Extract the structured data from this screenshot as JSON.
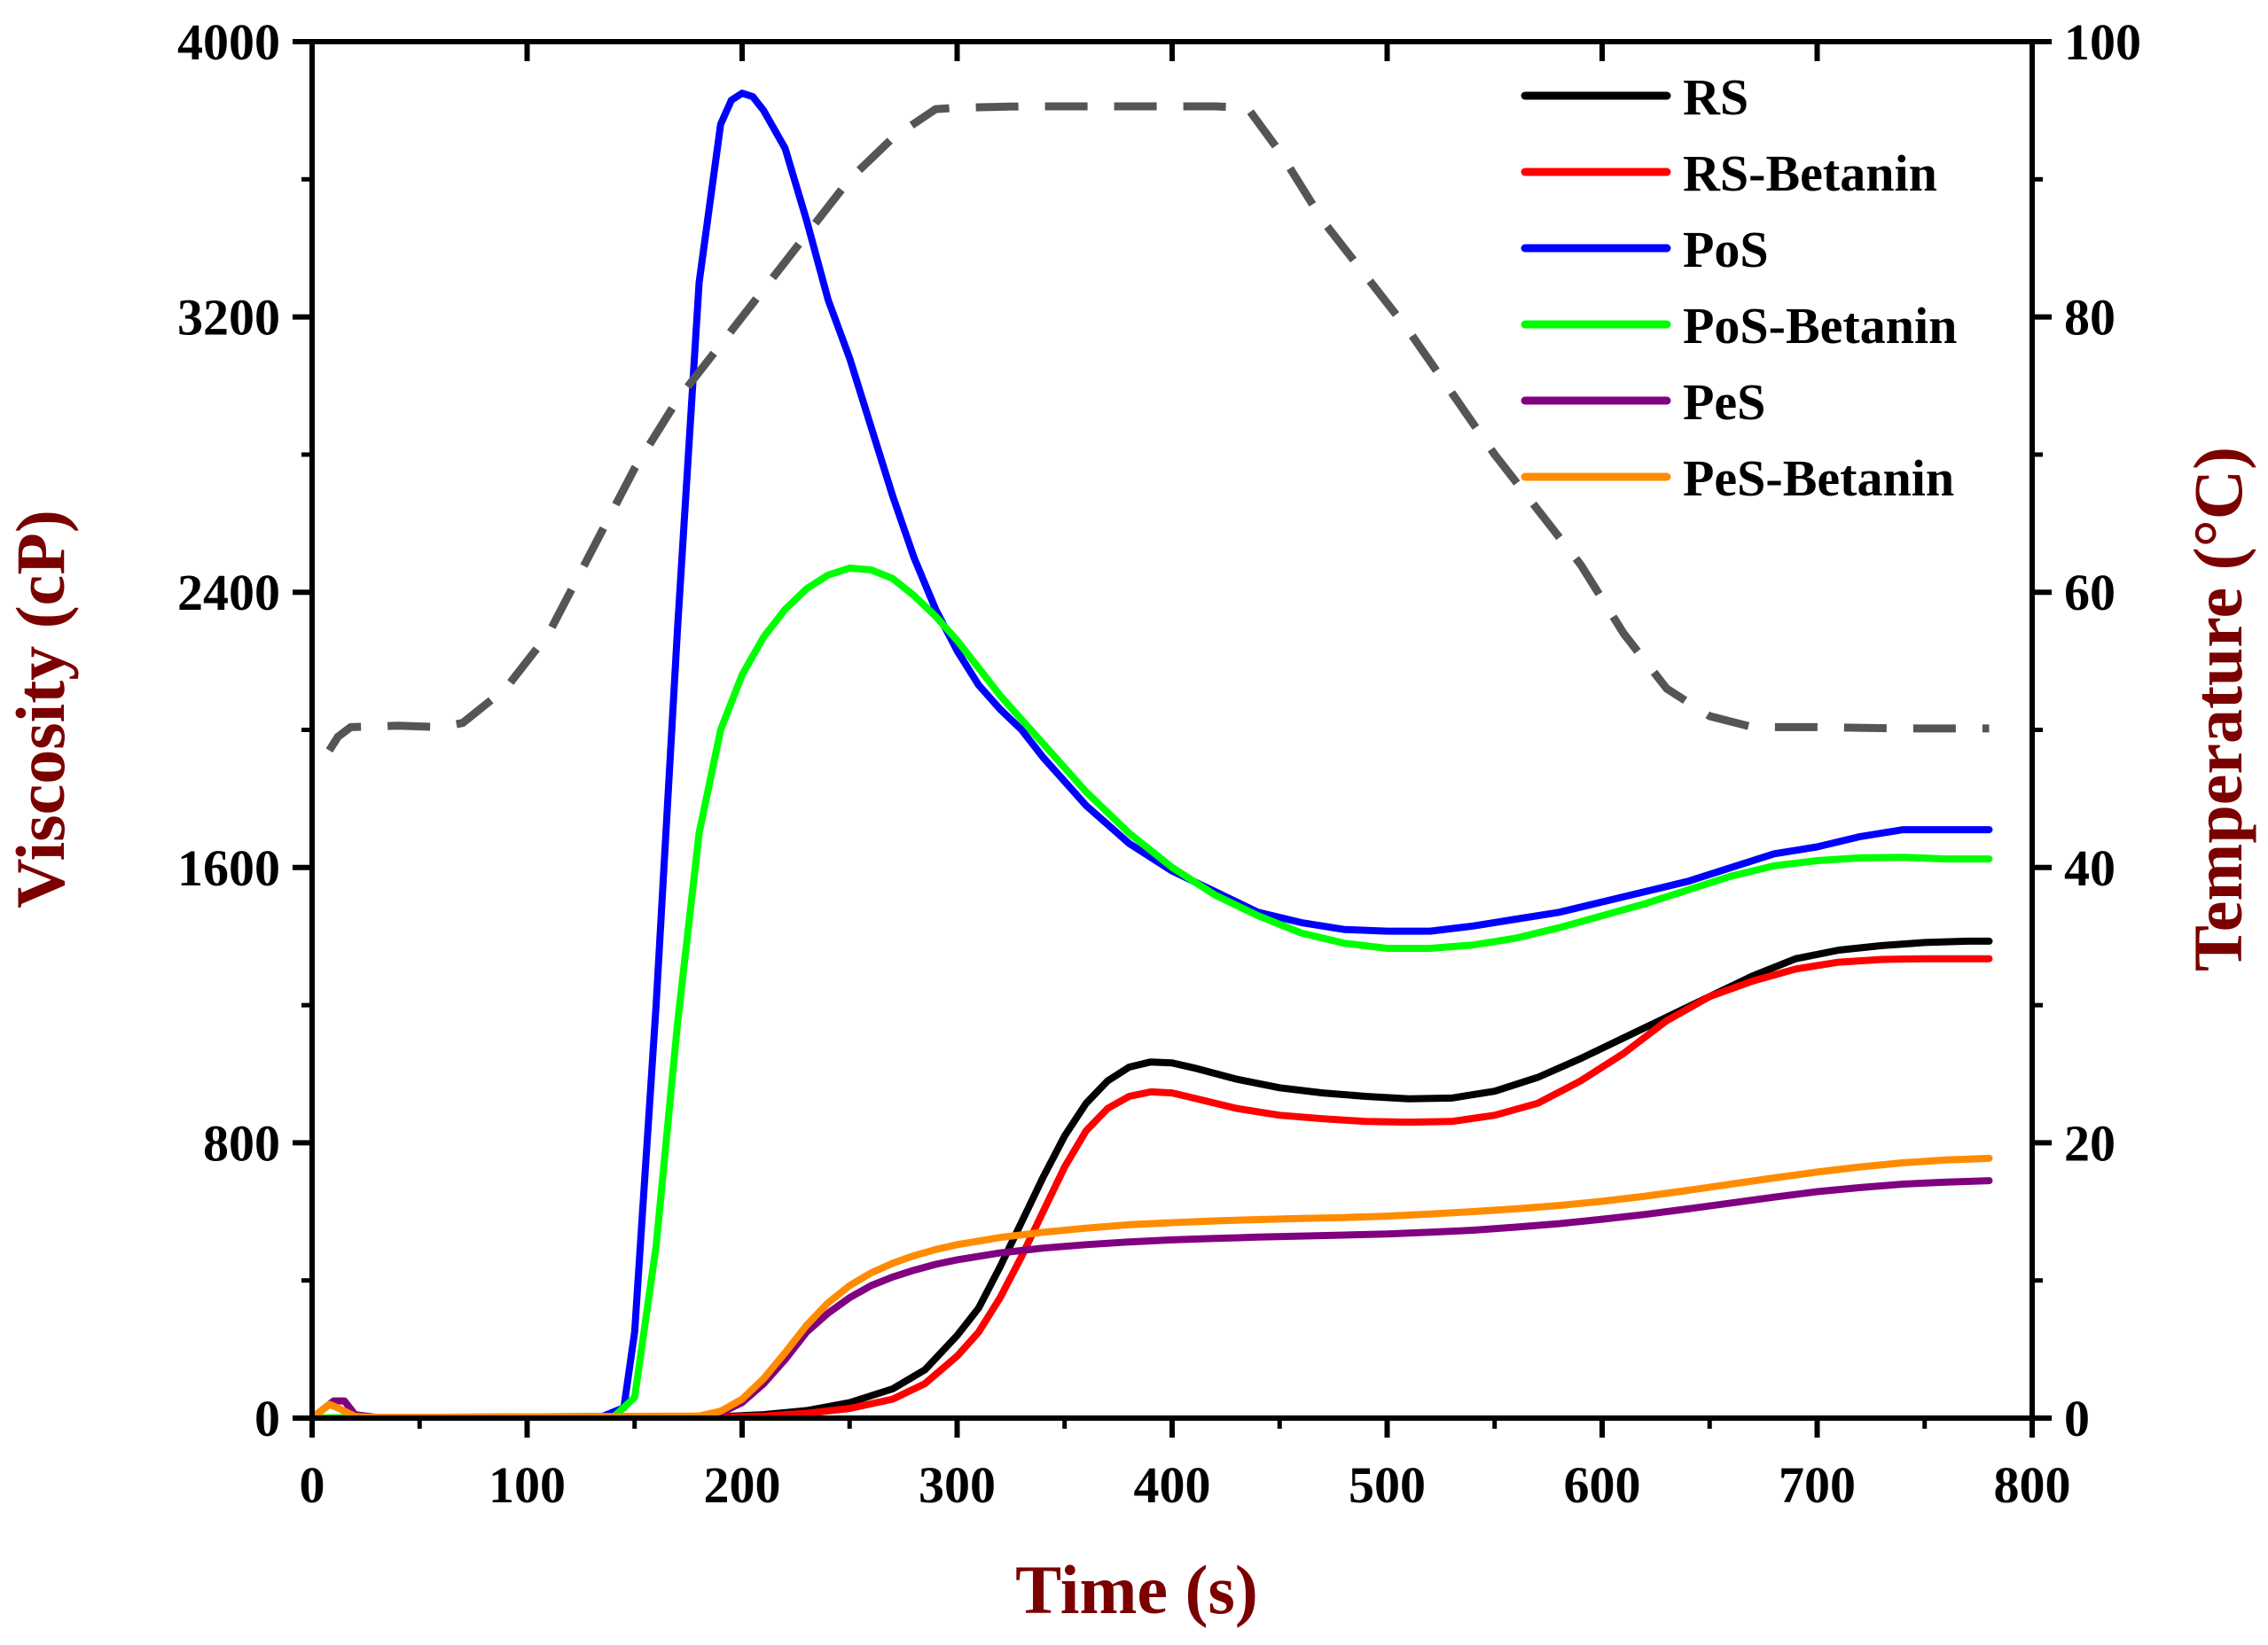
{
  "chart_data": {
    "type": "line",
    "xlabel": "Time (s)",
    "ylabel": "Viscosity (cP)",
    "y2label": "Temperature (°C)",
    "xlim": [
      0,
      800
    ],
    "ylim": [
      0,
      4000
    ],
    "y2lim": [
      0,
      100
    ],
    "xticks": [
      0,
      100,
      200,
      300,
      400,
      500,
      600,
      700,
      800
    ],
    "yticks": [
      0,
      800,
      1600,
      2400,
      3200,
      4000
    ],
    "y2ticks": [
      0,
      20,
      40,
      60,
      80,
      100
    ],
    "legend_position": "top-right",
    "colors": {
      "axis": "#000000",
      "label": "#7b0000",
      "temperature": "#555555"
    },
    "series": [
      {
        "name": "RS",
        "color": "#000000",
        "points": [
          [
            0,
            0
          ],
          [
            150,
            2
          ],
          [
            190,
            4
          ],
          [
            210,
            10
          ],
          [
            230,
            22
          ],
          [
            250,
            45
          ],
          [
            270,
            85
          ],
          [
            285,
            140
          ],
          [
            300,
            240
          ],
          [
            310,
            320
          ],
          [
            320,
            440
          ],
          [
            330,
            570
          ],
          [
            340,
            700
          ],
          [
            350,
            820
          ],
          [
            360,
            915
          ],
          [
            370,
            980
          ],
          [
            380,
            1020
          ],
          [
            390,
            1035
          ],
          [
            400,
            1032
          ],
          [
            410,
            1018
          ],
          [
            430,
            985
          ],
          [
            450,
            960
          ],
          [
            470,
            945
          ],
          [
            490,
            935
          ],
          [
            510,
            928
          ],
          [
            530,
            930
          ],
          [
            550,
            950
          ],
          [
            570,
            990
          ],
          [
            590,
            1045
          ],
          [
            610,
            1105
          ],
          [
            630,
            1165
          ],
          [
            650,
            1225
          ],
          [
            670,
            1285
          ],
          [
            690,
            1335
          ],
          [
            710,
            1360
          ],
          [
            730,
            1373
          ],
          [
            750,
            1382
          ],
          [
            770,
            1386
          ],
          [
            780,
            1386
          ]
        ]
      },
      {
        "name": "RS-Betanin",
        "color": "#ff0000",
        "points": [
          [
            0,
            0
          ],
          [
            150,
            2
          ],
          [
            190,
            3
          ],
          [
            210,
            6
          ],
          [
            230,
            14
          ],
          [
            250,
            28
          ],
          [
            270,
            55
          ],
          [
            285,
            100
          ],
          [
            300,
            180
          ],
          [
            310,
            250
          ],
          [
            320,
            350
          ],
          [
            330,
            470
          ],
          [
            340,
            600
          ],
          [
            350,
            730
          ],
          [
            360,
            835
          ],
          [
            370,
            900
          ],
          [
            380,
            935
          ],
          [
            390,
            948
          ],
          [
            400,
            945
          ],
          [
            410,
            930
          ],
          [
            430,
            900
          ],
          [
            450,
            880
          ],
          [
            470,
            870
          ],
          [
            490,
            862
          ],
          [
            510,
            860
          ],
          [
            530,
            862
          ],
          [
            550,
            880
          ],
          [
            570,
            915
          ],
          [
            590,
            980
          ],
          [
            610,
            1060
          ],
          [
            630,
            1155
          ],
          [
            650,
            1225
          ],
          [
            670,
            1270
          ],
          [
            690,
            1305
          ],
          [
            710,
            1325
          ],
          [
            730,
            1333
          ],
          [
            750,
            1335
          ],
          [
            770,
            1335
          ],
          [
            780,
            1335
          ]
        ]
      },
      {
        "name": "PoS",
        "color": "#0000ff",
        "points": [
          [
            0,
            0
          ],
          [
            135,
            5
          ],
          [
            145,
            30
          ],
          [
            150,
            250
          ],
          [
            160,
            1200
          ],
          [
            170,
            2300
          ],
          [
            180,
            3300
          ],
          [
            190,
            3760
          ],
          [
            195,
            3830
          ],
          [
            200,
            3850
          ],
          [
            205,
            3840
          ],
          [
            210,
            3800
          ],
          [
            220,
            3690
          ],
          [
            230,
            3480
          ],
          [
            240,
            3250
          ],
          [
            250,
            3080
          ],
          [
            260,
            2880
          ],
          [
            270,
            2680
          ],
          [
            280,
            2500
          ],
          [
            290,
            2350
          ],
          [
            300,
            2230
          ],
          [
            310,
            2130
          ],
          [
            320,
            2060
          ],
          [
            330,
            2000
          ],
          [
            340,
            1920
          ],
          [
            350,
            1850
          ],
          [
            360,
            1780
          ],
          [
            380,
            1670
          ],
          [
            400,
            1590
          ],
          [
            420,
            1530
          ],
          [
            440,
            1470
          ],
          [
            460,
            1440
          ],
          [
            480,
            1420
          ],
          [
            500,
            1415
          ],
          [
            520,
            1415
          ],
          [
            540,
            1430
          ],
          [
            560,
            1450
          ],
          [
            580,
            1470
          ],
          [
            600,
            1500
          ],
          [
            620,
            1530
          ],
          [
            640,
            1560
          ],
          [
            660,
            1600
          ],
          [
            680,
            1640
          ],
          [
            700,
            1660
          ],
          [
            720,
            1690
          ],
          [
            740,
            1710
          ],
          [
            760,
            1710
          ],
          [
            780,
            1710
          ]
        ]
      },
      {
        "name": "PoS-Betanin",
        "color": "#00ff00",
        "points": [
          [
            0,
            0
          ],
          [
            140,
            2
          ],
          [
            150,
            60
          ],
          [
            160,
            500
          ],
          [
            170,
            1150
          ],
          [
            180,
            1700
          ],
          [
            190,
            2000
          ],
          [
            200,
            2160
          ],
          [
            210,
            2270
          ],
          [
            220,
            2350
          ],
          [
            230,
            2410
          ],
          [
            240,
            2450
          ],
          [
            250,
            2470
          ],
          [
            260,
            2465
          ],
          [
            270,
            2440
          ],
          [
            280,
            2390
          ],
          [
            290,
            2330
          ],
          [
            300,
            2260
          ],
          [
            320,
            2100
          ],
          [
            340,
            1960
          ],
          [
            360,
            1820
          ],
          [
            380,
            1700
          ],
          [
            400,
            1600
          ],
          [
            420,
            1520
          ],
          [
            440,
            1460
          ],
          [
            460,
            1410
          ],
          [
            480,
            1380
          ],
          [
            500,
            1365
          ],
          [
            520,
            1365
          ],
          [
            540,
            1375
          ],
          [
            560,
            1395
          ],
          [
            580,
            1425
          ],
          [
            600,
            1460
          ],
          [
            620,
            1495
          ],
          [
            640,
            1535
          ],
          [
            660,
            1575
          ],
          [
            680,
            1605
          ],
          [
            700,
            1620
          ],
          [
            720,
            1628
          ],
          [
            740,
            1630
          ],
          [
            760,
            1625
          ],
          [
            780,
            1625
          ]
        ]
      },
      {
        "name": "PeS",
        "color": "#800080",
        "points": [
          [
            0,
            0
          ],
          [
            10,
            50
          ],
          [
            15,
            50
          ],
          [
            20,
            10
          ],
          [
            30,
            2
          ],
          [
            180,
            5
          ],
          [
            190,
            15
          ],
          [
            200,
            45
          ],
          [
            210,
            100
          ],
          [
            220,
            170
          ],
          [
            230,
            250
          ],
          [
            240,
            305
          ],
          [
            250,
            350
          ],
          [
            260,
            385
          ],
          [
            270,
            410
          ],
          [
            280,
            430
          ],
          [
            290,
            447
          ],
          [
            300,
            460
          ],
          [
            320,
            480
          ],
          [
            340,
            494
          ],
          [
            360,
            504
          ],
          [
            380,
            512
          ],
          [
            400,
            518
          ],
          [
            420,
            522
          ],
          [
            440,
            526
          ],
          [
            460,
            529
          ],
          [
            480,
            532
          ],
          [
            500,
            535
          ],
          [
            520,
            540
          ],
          [
            540,
            546
          ],
          [
            560,
            555
          ],
          [
            580,
            565
          ],
          [
            600,
            578
          ],
          [
            620,
            592
          ],
          [
            640,
            608
          ],
          [
            660,
            625
          ],
          [
            680,
            642
          ],
          [
            700,
            658
          ],
          [
            720,
            670
          ],
          [
            740,
            680
          ],
          [
            760,
            686
          ],
          [
            780,
            690
          ]
        ]
      },
      {
        "name": "PeS-Betanin",
        "color": "#ff8c00",
        "points": [
          [
            0,
            0
          ],
          [
            8,
            40
          ],
          [
            12,
            30
          ],
          [
            20,
            5
          ],
          [
            30,
            2
          ],
          [
            180,
            6
          ],
          [
            190,
            20
          ],
          [
            200,
            55
          ],
          [
            210,
            115
          ],
          [
            220,
            190
          ],
          [
            230,
            270
          ],
          [
            240,
            335
          ],
          [
            250,
            385
          ],
          [
            260,
            422
          ],
          [
            270,
            450
          ],
          [
            280,
            472
          ],
          [
            290,
            490
          ],
          [
            300,
            504
          ],
          [
            320,
            525
          ],
          [
            340,
            540
          ],
          [
            360,
            552
          ],
          [
            380,
            562
          ],
          [
            400,
            568
          ],
          [
            420,
            573
          ],
          [
            440,
            577
          ],
          [
            460,
            580
          ],
          [
            480,
            583
          ],
          [
            500,
            587
          ],
          [
            520,
            593
          ],
          [
            540,
            600
          ],
          [
            560,
            608
          ],
          [
            580,
            618
          ],
          [
            600,
            630
          ],
          [
            620,
            645
          ],
          [
            640,
            662
          ],
          [
            660,
            680
          ],
          [
            680,
            698
          ],
          [
            700,
            715
          ],
          [
            720,
            730
          ],
          [
            740,
            742
          ],
          [
            760,
            750
          ],
          [
            780,
            755
          ]
        ]
      },
      {
        "name": "Temperature",
        "axis": "y2",
        "style": "dashed",
        "color": "#555555",
        "points": [
          [
            8,
            48.5
          ],
          [
            12,
            49.5
          ],
          [
            18,
            50.2
          ],
          [
            40,
            50.3
          ],
          [
            60,
            50.2
          ],
          [
            70,
            50.5
          ],
          [
            90,
            53
          ],
          [
            110,
            57
          ],
          [
            130,
            63
          ],
          [
            150,
            69
          ],
          [
            170,
            74
          ],
          [
            190,
            78
          ],
          [
            210,
            82
          ],
          [
            230,
            86
          ],
          [
            250,
            90
          ],
          [
            270,
            93
          ],
          [
            290,
            95.1
          ],
          [
            300,
            95.2
          ],
          [
            330,
            95.3
          ],
          [
            360,
            95.3
          ],
          [
            390,
            95.3
          ],
          [
            420,
            95.3
          ],
          [
            435,
            95.2
          ],
          [
            450,
            92
          ],
          [
            470,
            87
          ],
          [
            490,
            83
          ],
          [
            510,
            79
          ],
          [
            530,
            74.5
          ],
          [
            550,
            70
          ],
          [
            570,
            66
          ],
          [
            590,
            62
          ],
          [
            610,
            57
          ],
          [
            630,
            53
          ],
          [
            650,
            51
          ],
          [
            670,
            50.2
          ],
          [
            700,
            50.2
          ],
          [
            740,
            50.1
          ],
          [
            780,
            50.1
          ]
        ]
      }
    ]
  }
}
